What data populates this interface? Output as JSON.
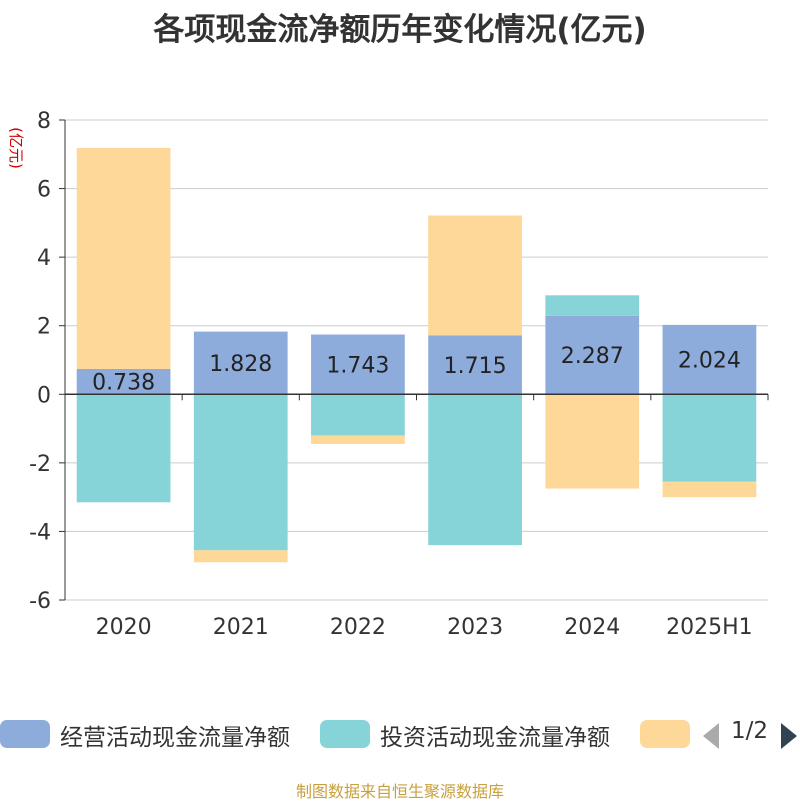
{
  "title": "各项现金流净额历年变化情况(亿元)",
  "footer": "制图数据来自恒生聚源数据库",
  "chart_data": {
    "type": "bar",
    "stacked": true,
    "ylabel": "(亿元)",
    "ylim": [
      -6,
      8
    ],
    "yticks": [
      -6,
      -4,
      -2,
      0,
      2,
      4,
      6,
      8
    ],
    "grid": true,
    "categories": [
      "2020",
      "2021",
      "2022",
      "2023",
      "2024",
      "2025H1"
    ],
    "series": [
      {
        "name": "经营活动现金流量净额",
        "color": "#8eacdb",
        "values": [
          0.738,
          1.828,
          1.743,
          1.715,
          2.287,
          2.024
        ],
        "labels": [
          "0.738",
          "1.828",
          "1.743",
          "1.715",
          "2.287",
          "2.024"
        ]
      },
      {
        "name": "投资活动现金流量净额",
        "color": "#86d4d8",
        "values": [
          -3.15,
          -4.55,
          -1.2,
          -4.4,
          0.6,
          -2.55
        ]
      },
      {
        "name": "",
        "color": "#fdd898",
        "values": [
          6.45,
          -0.35,
          -0.25,
          3.5,
          -2.75,
          -0.45
        ]
      }
    ],
    "legend": {
      "placement": "bottom",
      "page": "1/2"
    }
  }
}
